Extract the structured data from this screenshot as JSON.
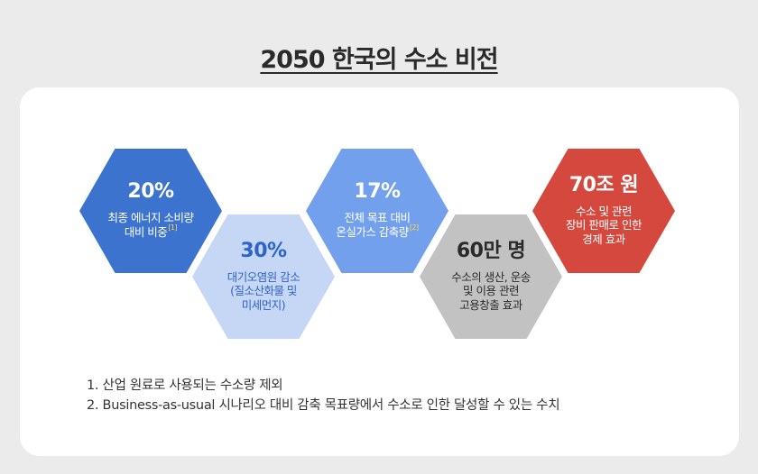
{
  "title": "2050 한국의 수소 비전",
  "hexagons": [
    {
      "value": "20%",
      "lines": [
        "최종 에너지 소비량",
        "대비 비중"
      ],
      "footnote": "[1]",
      "color": "#3b73cf"
    },
    {
      "value": "30%",
      "lines": [
        "대기오염원 감소",
        "(질소산화물 및",
        "미세먼지)"
      ],
      "color": "#c5d7f5"
    },
    {
      "value": "17%",
      "lines": [
        "전체 목표 대비",
        "온실가스 감축량"
      ],
      "footnote": "[2]",
      "color": "#72a0ec"
    },
    {
      "value": "60만 명",
      "lines": [
        "수소의 생산, 운송",
        "및 이용 관련",
        "고용창출 효과"
      ],
      "color": "#c2c2c2"
    },
    {
      "value": "70조 원",
      "lines": [
        "수소 및 관련",
        "장비 판매로 인한",
        "경제 효과"
      ],
      "color": "#d5483e"
    }
  ],
  "notes": [
    "1. 산업 원료로 사용되는 수소량 제외",
    "2. Business-as-usual 시나리오 대비 감축 목표량에서 수소로 인한 달성할 수 있는 수치"
  ]
}
